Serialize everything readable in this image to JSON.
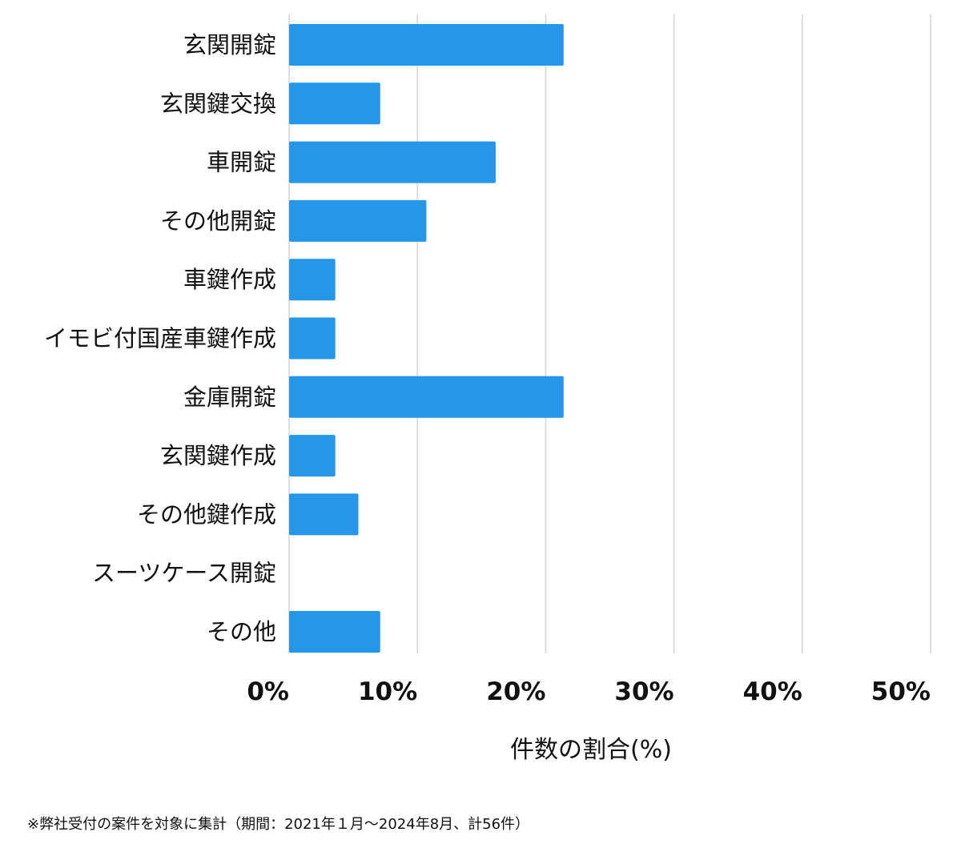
{
  "chart_data": {
    "type": "bar",
    "orientation": "horizontal",
    "categories": [
      "玄関開錠",
      "玄関鍵交換",
      "車開錠",
      "その他開錠",
      "車鍵作成",
      "イモビ付国産車鍵作成",
      "金庫開錠",
      "玄関鍵作成",
      "その他鍵作成",
      "スーツケース開錠",
      "その他"
    ],
    "values": [
      21.4,
      7.1,
      16.1,
      10.7,
      3.6,
      3.6,
      21.4,
      3.6,
      5.4,
      0,
      7.1
    ],
    "xlim": [
      0,
      50
    ],
    "x_ticks": [
      0,
      10,
      20,
      30,
      40,
      50
    ],
    "x_tick_labels": [
      "0%",
      "10%",
      "20%",
      "30%",
      "40%",
      "50%"
    ],
    "xlabel": "件数の割合(%)",
    "ylabel": "",
    "title": "",
    "grid": "vertical",
    "bar_color": "#2696e8",
    "grid_color": "#d4d4d4"
  },
  "footnote": "※弊社受付の案件を対象に集計（期間：2021年１月〜2024年8月、計56件）"
}
